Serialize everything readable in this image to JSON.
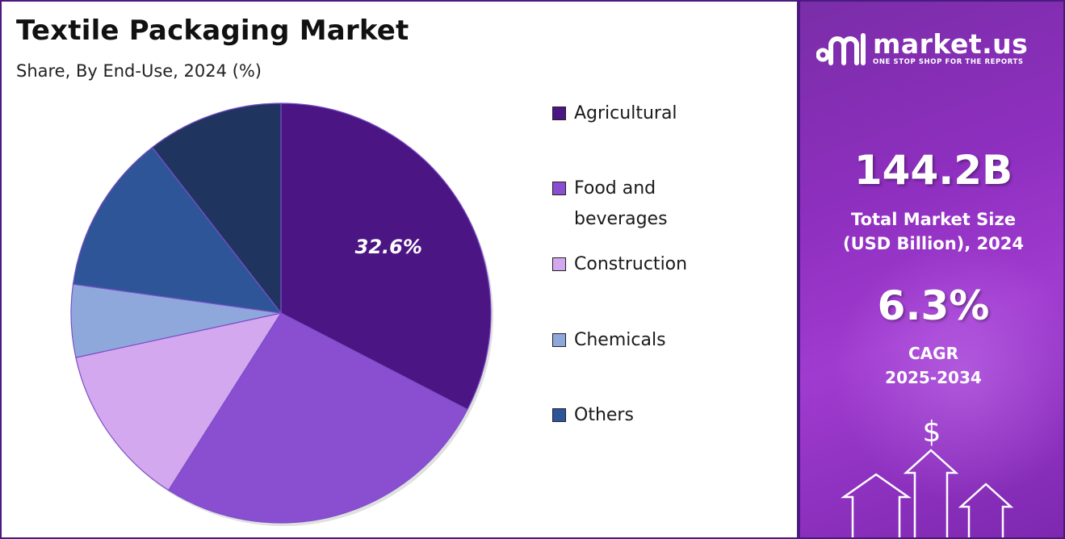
{
  "title": "Textile Packaging Market",
  "subtitle": "Share, By End-Use, 2024 (%)",
  "chart_data": {
    "type": "pie",
    "title": "Textile Packaging Market",
    "subtitle": "Share, By End-Use, 2024 (%)",
    "start_angle_deg": 0,
    "direction": "clockwise",
    "legend_position": "right",
    "slices": [
      {
        "name": "Agricultural",
        "value": 32.6,
        "color": "#4b1683",
        "label": "32.6%"
      },
      {
        "name": "Food and beverages",
        "value": 26.4,
        "color": "#8a4fd0",
        "label": ""
      },
      {
        "name": "Construction",
        "value": 12.6,
        "color": "#d4a8ee",
        "label": ""
      },
      {
        "name": "Chemicals",
        "value": 5.6,
        "color": "#8ea8dc",
        "label": ""
      },
      {
        "name": "Others",
        "value": 12.3,
        "color": "#2e5597",
        "label": ""
      },
      {
        "value": 10.5,
        "color": "#1f3560",
        "label": ""
      }
    ]
  },
  "legend": [
    {
      "lines": [
        "Agricultural"
      ],
      "color": "#4b1683"
    },
    {
      "lines": [
        "Food and",
        "beverages"
      ],
      "color": "#8a4fd0"
    },
    {
      "lines": [
        "Construction"
      ],
      "color": "#d4a8ee"
    },
    {
      "lines": [
        "Chemicals"
      ],
      "color": "#8ea8dc"
    },
    {
      "lines": [
        "Others"
      ],
      "color": "#2e5597"
    }
  ],
  "side_panel": {
    "brand_name": "market.us",
    "brand_tagline": "ONE STOP SHOP FOR THE REPORTS",
    "market_size_value": "144.2B",
    "market_size_label_1": "Total Market Size",
    "market_size_label_2": "(USD Billion), 2024",
    "cagr_value": "6.3%",
    "cagr_label_1": "CAGR",
    "cagr_label_2": "2025-2034",
    "currency_symbol": "$",
    "icon": "growth-arrows-icon"
  }
}
